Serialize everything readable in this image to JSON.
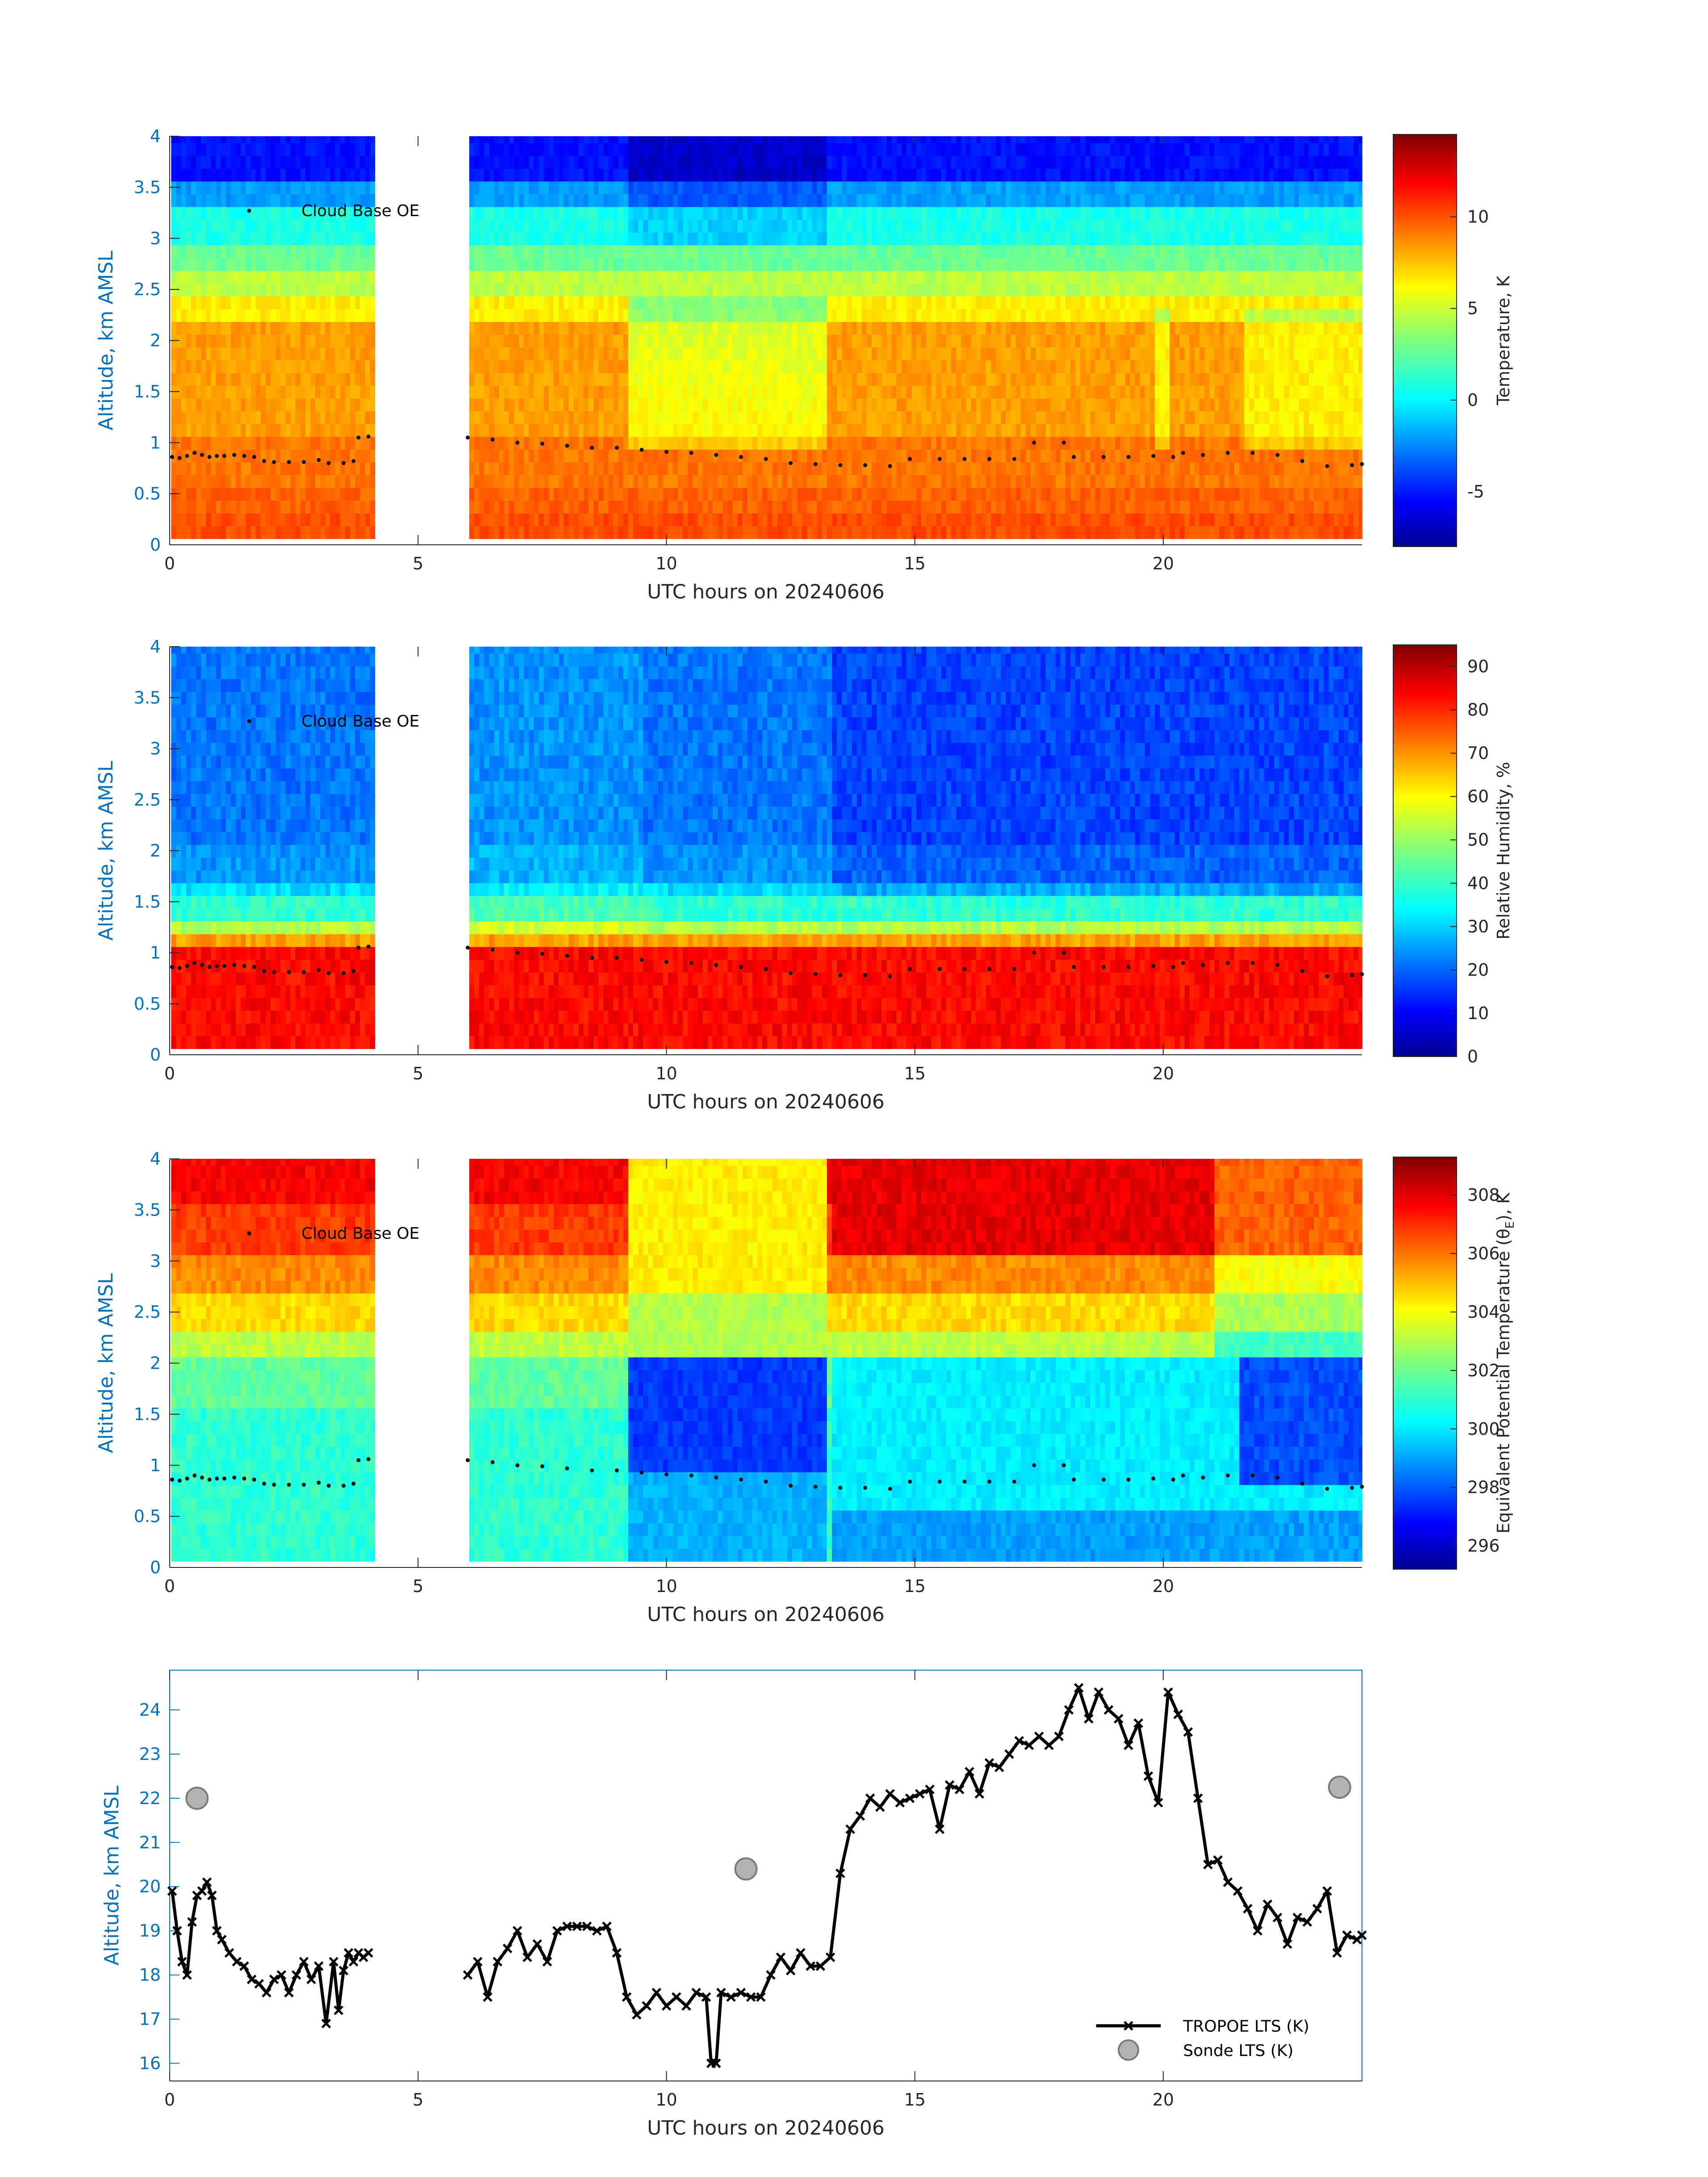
{
  "chart_data": [
    {
      "type": "heatmap",
      "title": "",
      "xlabel": "UTC hours on 20240606",
      "ylabel": "Altitude, km AMSL",
      "xlim": [
        0,
        24
      ],
      "ylim": [
        0,
        4
      ],
      "xticks": [
        "0",
        "5",
        "10",
        "15",
        "20"
      ],
      "yticks": [
        "0",
        "0.5",
        "1",
        "1.5",
        "2",
        "2.5",
        "3",
        "3.5",
        "4"
      ],
      "colorbar_label": "Temperature, K",
      "colorbar_range": [
        -8,
        14.5
      ],
      "colorbar_ticks": [
        "-5",
        "0",
        "5",
        "10"
      ],
      "data_gap_hours": [
        4.05,
        5.95
      ],
      "legend": [
        "Cloud Base OE"
      ]
    },
    {
      "type": "heatmap",
      "title": "",
      "xlabel": "UTC hours on 20240606",
      "ylabel": "Altitude, km AMSL",
      "xlim": [
        0,
        24
      ],
      "ylim": [
        0,
        4
      ],
      "xticks": [
        "0",
        "5",
        "10",
        "15",
        "20"
      ],
      "yticks": [
        "0",
        "0.5",
        "1",
        "1.5",
        "2",
        "2.5",
        "3",
        "3.5",
        "4"
      ],
      "colorbar_label": "Relative Humidity, %",
      "colorbar_range": [
        0,
        95
      ],
      "colorbar_ticks": [
        "0",
        "10",
        "20",
        "30",
        "40",
        "50",
        "60",
        "70",
        "80",
        "90"
      ],
      "data_gap_hours": [
        4.05,
        5.95
      ],
      "legend": [
        "Cloud Base OE"
      ]
    },
    {
      "type": "heatmap",
      "title": "",
      "xlabel": "UTC hours on 20240606",
      "ylabel": "Altitude, km AMSL",
      "xlim": [
        0,
        24
      ],
      "ylim": [
        0,
        4
      ],
      "xticks": [
        "0",
        "5",
        "10",
        "15",
        "20"
      ],
      "yticks": [
        "0",
        "0.5",
        "1",
        "1.5",
        "2",
        "2.5",
        "3",
        "3.5",
        "4"
      ],
      "colorbar_label": "Equivalent Potential Temperature (θ",
      "colorbar_label_sub": "E",
      "colorbar_label_end": "), K",
      "colorbar_range": [
        295.2,
        309.3
      ],
      "colorbar_ticks": [
        "296",
        "298",
        "300",
        "302",
        "304",
        "306",
        "308"
      ],
      "data_gap_hours": [
        4.05,
        5.95
      ],
      "legend": [
        "Cloud Base OE"
      ]
    },
    {
      "type": "line",
      "title": "",
      "xlabel": "UTC hours on 20240606",
      "ylabel": "Altitude, km AMSL",
      "xlim": [
        0,
        24
      ],
      "ylim": [
        15.6,
        24.9
      ],
      "xticks": [
        "0",
        "5",
        "10",
        "15",
        "20"
      ],
      "yticks": [
        "16",
        "17",
        "18",
        "19",
        "20",
        "21",
        "22",
        "23",
        "24"
      ],
      "legend": [
        "TROPOE LTS (K)",
        "Sonde LTS (K)"
      ],
      "series": [
        {
          "name": "TROPOE LTS (K)",
          "x": [
            0.05,
            0.15,
            0.25,
            0.35,
            0.45,
            0.55,
            0.65,
            0.75,
            0.85,
            0.95,
            1.05,
            1.2,
            1.35,
            1.5,
            1.65,
            1.8,
            1.95,
            2.1,
            2.25,
            2.4,
            2.55,
            2.7,
            2.85,
            3.0,
            3.15,
            3.3,
            3.4,
            3.5,
            3.6,
            3.7,
            3.8,
            3.9,
            4.0,
            6.0,
            6.2,
            6.4,
            6.6,
            6.8,
            7.0,
            7.2,
            7.4,
            7.6,
            7.8,
            8.0,
            8.2,
            8.4,
            8.6,
            8.8,
            9.0,
            9.2,
            9.4,
            9.6,
            9.8,
            10.0,
            10.2,
            10.4,
            10.6,
            10.8,
            10.9,
            11.0,
            11.1,
            11.3,
            11.5,
            11.7,
            11.9,
            12.1,
            12.3,
            12.5,
            12.7,
            12.9,
            13.1,
            13.3,
            13.5,
            13.7,
            13.9,
            14.1,
            14.3,
            14.5,
            14.7,
            14.9,
            15.1,
            15.3,
            15.5,
            15.7,
            15.9,
            16.1,
            16.3,
            16.5,
            16.7,
            16.9,
            17.1,
            17.3,
            17.5,
            17.7,
            17.9,
            18.1,
            18.3,
            18.5,
            18.7,
            18.9,
            19.1,
            19.3,
            19.5,
            19.7,
            19.9,
            20.1,
            20.3,
            20.5,
            20.7,
            20.9,
            21.1,
            21.3,
            21.5,
            21.7,
            21.9,
            22.1,
            22.3,
            22.5,
            22.7,
            22.9,
            23.1,
            23.3,
            23.5,
            23.7,
            23.9,
            24.0
          ],
          "y": [
            19.9,
            19.0,
            18.3,
            18.0,
            19.2,
            19.8,
            19.9,
            20.1,
            19.8,
            19.0,
            18.8,
            18.5,
            18.3,
            18.2,
            17.9,
            17.8,
            17.6,
            17.9,
            18.0,
            17.6,
            18.0,
            18.3,
            17.9,
            18.2,
            16.9,
            18.3,
            17.2,
            18.1,
            18.5,
            18.3,
            18.5,
            18.4,
            18.5,
            18.0,
            18.3,
            17.5,
            18.3,
            18.6,
            19.0,
            18.4,
            18.7,
            18.3,
            19.0,
            19.1,
            19.1,
            19.1,
            19.0,
            19.1,
            18.5,
            17.5,
            17.1,
            17.3,
            17.6,
            17.3,
            17.5,
            17.3,
            17.6,
            17.5,
            16.0,
            16.0,
            17.6,
            17.5,
            17.6,
            17.5,
            17.5,
            18.0,
            18.4,
            18.1,
            18.5,
            18.2,
            18.2,
            18.4,
            20.3,
            21.3,
            21.6,
            22.0,
            21.8,
            22.1,
            21.9,
            22.0,
            22.1,
            22.2,
            21.3,
            22.3,
            22.2,
            22.6,
            22.1,
            22.8,
            22.7,
            23.0,
            23.3,
            23.2,
            23.4,
            23.2,
            23.4,
            24.0,
            24.5,
            23.8,
            24.4,
            24.0,
            23.8,
            23.2,
            23.7,
            22.5,
            21.9,
            24.4,
            23.9,
            23.5,
            22.0,
            20.5,
            20.6,
            20.1,
            19.9,
            19.5,
            19.0,
            19.6,
            19.3,
            18.7,
            19.3,
            19.2,
            19.5,
            19.9,
            18.5,
            18.9,
            18.8,
            18.9
          ]
        },
        {
          "name": "Sonde LTS (K)",
          "x": [
            0.55,
            11.6,
            23.55
          ],
          "y": [
            22.0,
            20.4,
            22.25
          ]
        }
      ]
    }
  ],
  "colors": {
    "axis_text": "#262626",
    "ylabel": "#0072bd",
    "line": "#000000",
    "sonde_fill": "#b3b3b3",
    "sonde_edge": "#7a7a7a"
  }
}
